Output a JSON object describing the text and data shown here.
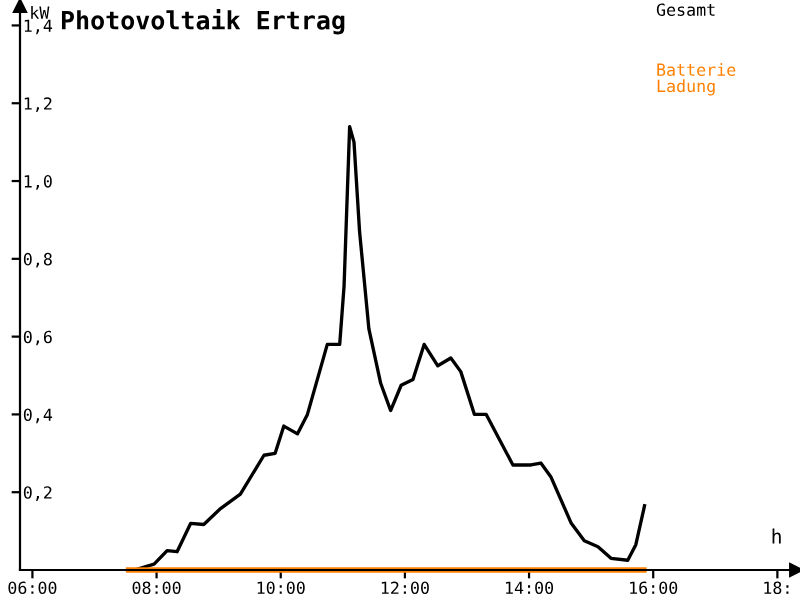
{
  "chart_data": {
    "type": "line",
    "title": "Photovoltaik Ertrag",
    "xlabel": "h",
    "ylabel": "kW",
    "xlim": [
      5.8,
      18.3
    ],
    "ylim": [
      0,
      1.45
    ],
    "xticks": [
      {
        "value": 6,
        "label": "06:00"
      },
      {
        "value": 8,
        "label": "08:00"
      },
      {
        "value": 10,
        "label": "10:00"
      },
      {
        "value": 12,
        "label": "12:00"
      },
      {
        "value": 14,
        "label": "14:00"
      },
      {
        "value": 16,
        "label": "16:00"
      },
      {
        "value": 18,
        "label": "18:"
      }
    ],
    "yticks": [
      {
        "value": 0.2,
        "label": "0,2"
      },
      {
        "value": 0.4,
        "label": "0,4"
      },
      {
        "value": 0.6,
        "label": "0,6"
      },
      {
        "value": 0.8,
        "label": "0,8"
      },
      {
        "value": 1.0,
        "label": "1,0"
      },
      {
        "value": 1.2,
        "label": "1,2"
      },
      {
        "value": 1.4,
        "label": "1,4"
      }
    ],
    "grid": false,
    "legend": "top right",
    "marker": "none",
    "line_style": "solid",
    "series": [
      {
        "name": "Gesamt",
        "color": "#000000",
        "x": [
          7.64,
          7.96,
          8.17,
          8.33,
          8.55,
          8.76,
          9.03,
          9.35,
          9.73,
          9.91,
          10.05,
          10.27,
          10.43,
          10.75,
          10.95,
          11.02,
          11.11,
          11.18,
          11.27,
          11.42,
          11.61,
          11.77,
          11.94,
          12.13,
          12.31,
          12.53,
          12.74,
          12.9,
          13.12,
          13.31,
          13.74,
          14.03,
          14.19,
          14.35,
          14.68,
          14.89,
          15.11,
          15.32,
          15.59,
          15.72,
          15.86
        ],
        "values": [
          0,
          0.015,
          0.05,
          0.047,
          0.12,
          0.117,
          0.158,
          0.195,
          0.295,
          0.3,
          0.37,
          0.35,
          0.4,
          0.58,
          0.58,
          0.73,
          1.14,
          1.1,
          0.87,
          0.62,
          0.48,
          0.41,
          0.475,
          0.49,
          0.58,
          0.525,
          0.545,
          0.51,
          0.4,
          0.4,
          0.27,
          0.27,
          0.275,
          0.24,
          0.12,
          0.075,
          0.06,
          0.03,
          0.025,
          0.065,
          0.165
        ]
      },
      {
        "name": "Batterie\nLadung",
        "color": "#ff8000",
        "x": [
          7.55,
          15.85
        ],
        "values": [
          0,
          0
        ]
      }
    ]
  }
}
